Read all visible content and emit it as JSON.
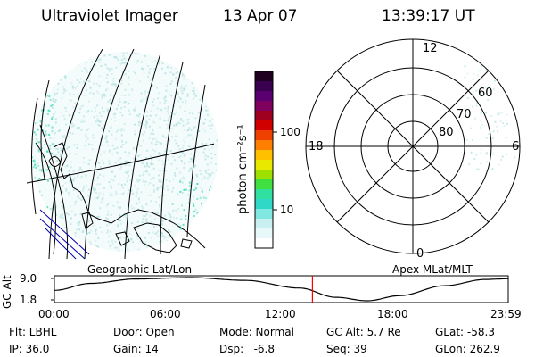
{
  "header": {
    "instrument": "Ultraviolet Imager",
    "date": "13 Apr 07",
    "time": "13:39:17 UT"
  },
  "colorbar": {
    "unit_label": "photon cm⁻²s⁻¹",
    "tick_labels": [
      "100",
      "10"
    ],
    "colors": [
      "#200020",
      "#3a0050",
      "#5a0070",
      "#800060",
      "#a00020",
      "#d00000",
      "#f04000",
      "#ff8000",
      "#ffc000",
      "#e8e800",
      "#a0e000",
      "#40e040",
      "#30e0a0",
      "#30d8c8",
      "#80e8e0",
      "#c8f0f0",
      "#e8f8f8",
      "#ffffff"
    ]
  },
  "left_map": {
    "label": "Geographic Lat/Lon",
    "noise_color": "#b0e0e0",
    "aurora_color": "#30d8b0"
  },
  "right_map": {
    "label": "Apex MLat/MLT",
    "mlat_labels": [
      "60",
      "70",
      "80"
    ],
    "mlt_labels": [
      "12",
      "18",
      "6",
      "0"
    ]
  },
  "altitude_plot": {
    "ylabel": "GC Alt",
    "y_ticks": [
      "9.0",
      "1.8"
    ],
    "x_ticks": [
      "00:00",
      "06:00",
      "12:00",
      "18:00",
      "23:59"
    ],
    "current_time_fraction": 0.5686,
    "marker_color": "#ff0000"
  },
  "info": {
    "filter": "Flt: LBHL",
    "ip": "IP: 36.0",
    "door": "Door: Open",
    "gain": "Gain: 14",
    "mode": "Mode: Normal",
    "dsp": "Dsp:   -6.8",
    "gc_alt": "GC Alt: 5.7 Re",
    "seq": "Seq: 39",
    "glat": "GLat: -58.3",
    "glon": "GLon: 262.9"
  }
}
